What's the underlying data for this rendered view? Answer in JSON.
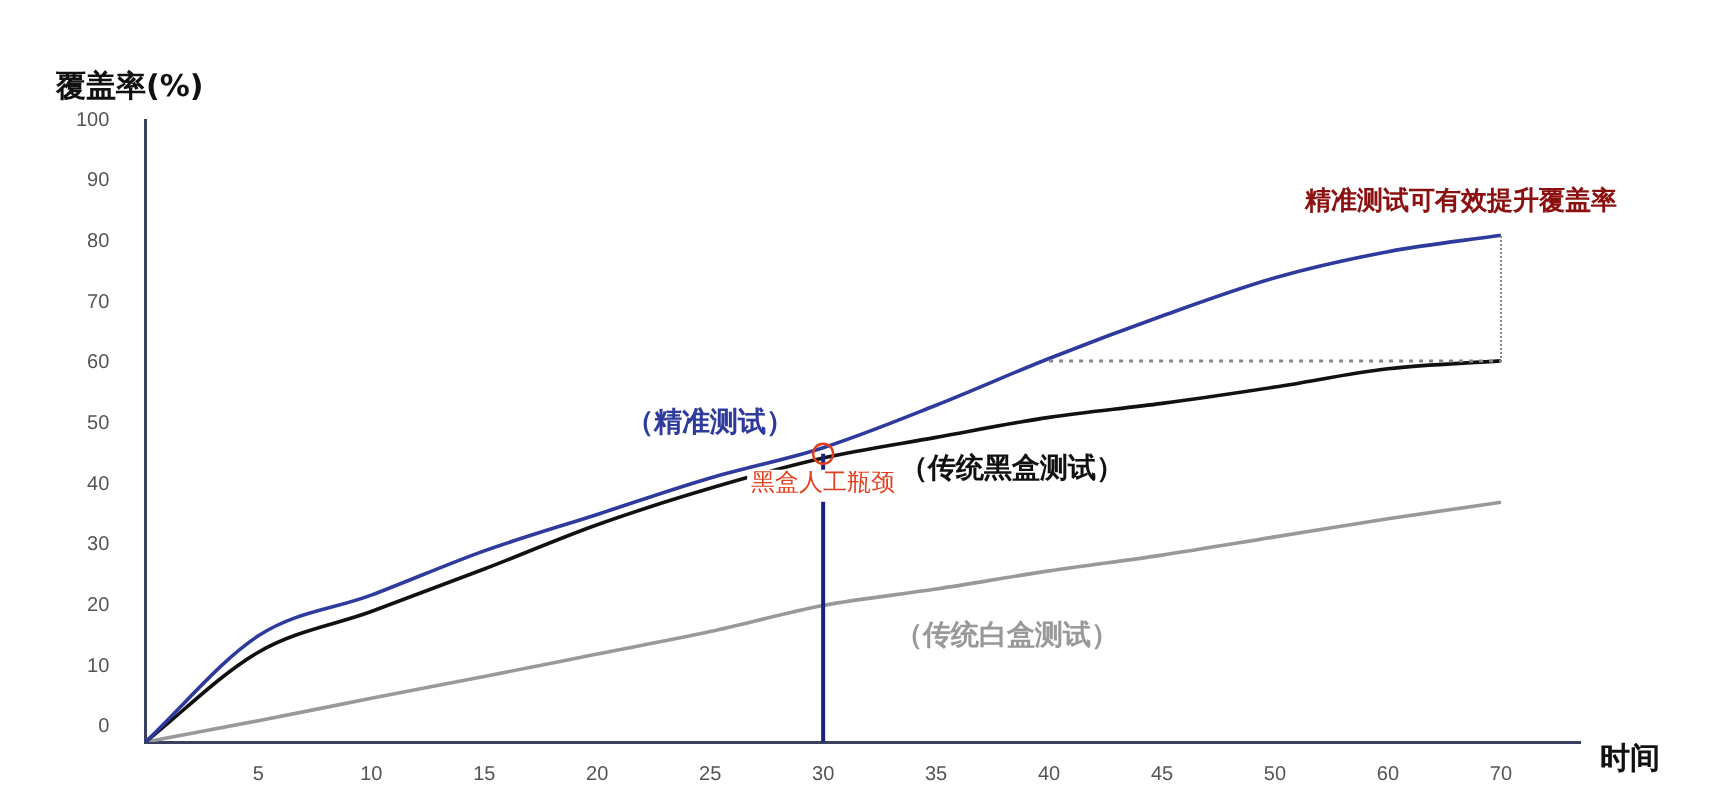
{
  "chart_data": {
    "type": "line",
    "ylabel": "覆盖率(%)",
    "xlabel": "时间",
    "categories": [
      null,
      "5",
      "10",
      "15",
      "20",
      "25",
      "30",
      "35",
      "40",
      "45",
      "50",
      "60",
      "70"
    ],
    "series": [
      {
        "name": "（精准测试）",
        "color": "#2e3a9c",
        "values": [
          -2.5,
          15,
          21.7,
          29,
          35,
          41,
          46,
          53,
          60.7,
          67.7,
          74,
          78.3,
          81
        ]
      },
      {
        "name": "（传统黑盒测试）",
        "color": "#111111",
        "values": [
          -2.5,
          12.3,
          19,
          26,
          33.3,
          39.3,
          44.3,
          47.7,
          51,
          53.3,
          56,
          59,
          60.3
        ]
      },
      {
        "name": "（传统白盒测试）",
        "color": "#999999",
        "values": [
          -2.5,
          1,
          4.7,
          8.3,
          12,
          15.7,
          20,
          22.7,
          25.7,
          28.3,
          31.3,
          34.3,
          37
        ]
      }
    ],
    "ylim": [
      -2.5,
      100
    ],
    "yticks": [
      0,
      10,
      20,
      30,
      40,
      50,
      60,
      70,
      80,
      90,
      100
    ],
    "annotations": [
      {
        "text": "黑盒人工瓶颈",
        "x": "30",
        "y": 45
      },
      {
        "text": "精准测试可有效提升覆盖率",
        "x": "70",
        "y": 81
      }
    ],
    "ref_lines": [
      {
        "axis": "x",
        "value": "30",
        "color": "#1a237e"
      },
      {
        "axis": "y",
        "value": 60.3,
        "color": "#888888",
        "line_style": "dotted"
      }
    ],
    "grid": false,
    "legend": false,
    "marker": "none"
  }
}
